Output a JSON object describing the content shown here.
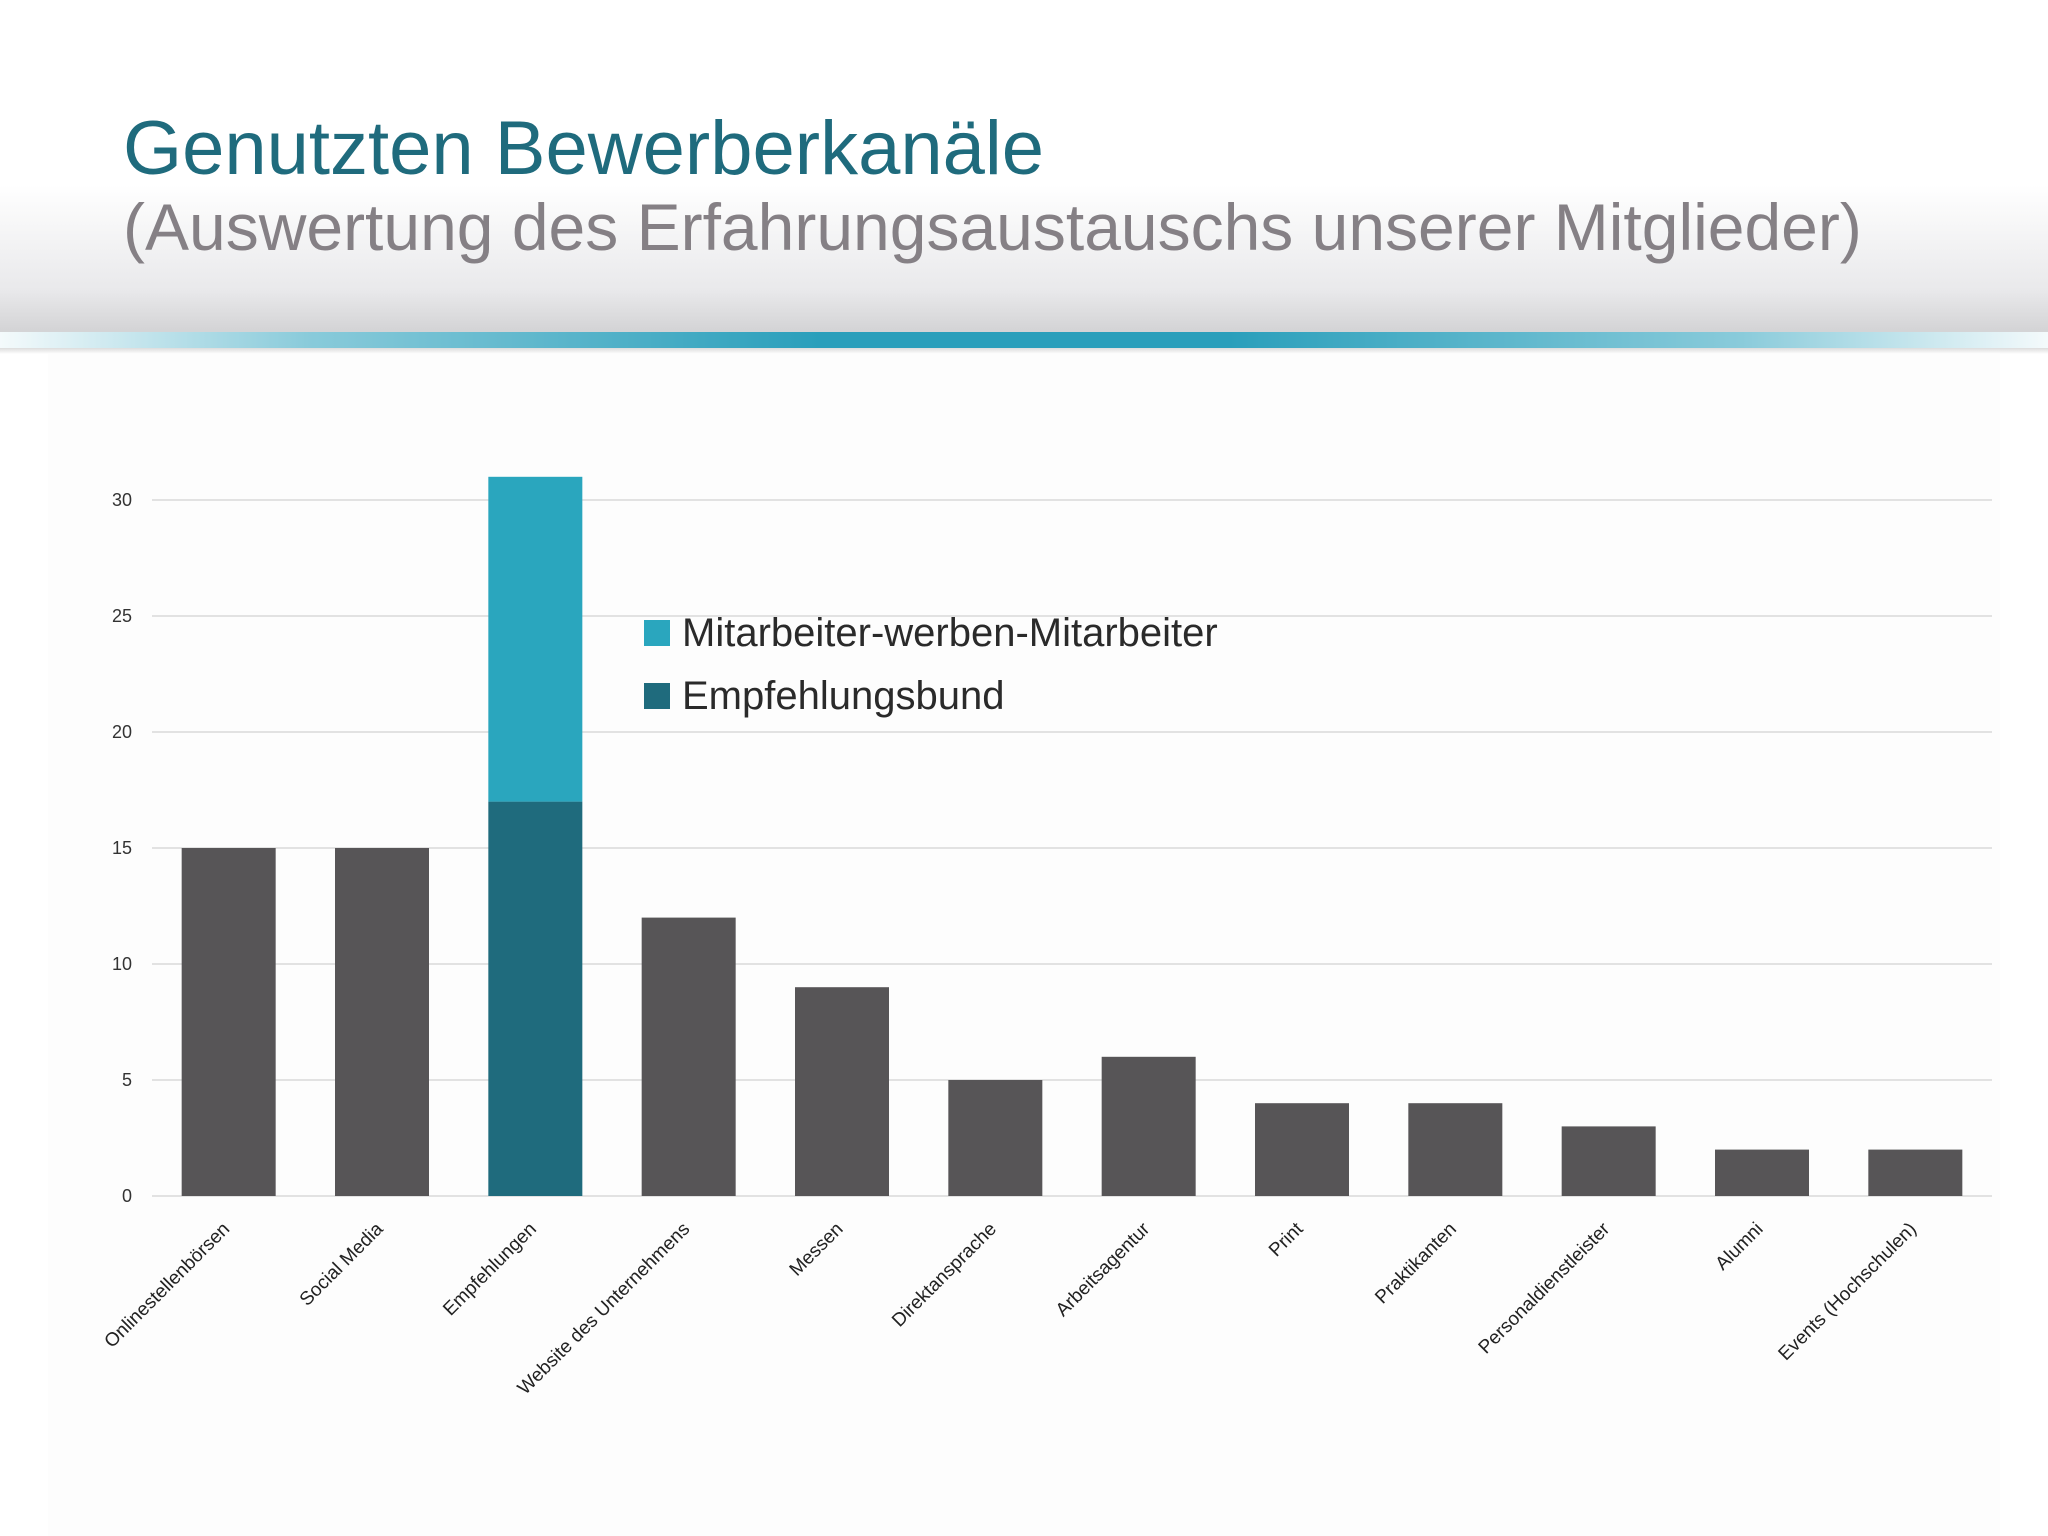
{
  "slide": {
    "title": "Genutzten Bewerberkanäle",
    "subtitle": "(Auswertung des Erfahrungsaustauschs unserer Mitglieder)"
  },
  "colors": {
    "title": "#1f6b7d",
    "subtitle": "#858085",
    "accent": "#2a9fbb",
    "bar_default": "#575557",
    "series_empfehlungsbund": "#1f6b7d",
    "series_mitarbeiter": "#2aa6be",
    "gridline": "#dadada"
  },
  "chart_data": {
    "type": "bar",
    "stacked": true,
    "title": "",
    "xlabel": "",
    "ylabel": "",
    "ylim": [
      0,
      31
    ],
    "yticks": [
      0,
      5,
      10,
      15,
      20,
      25,
      30
    ],
    "grid": true,
    "legend_position": "top-center",
    "categories": [
      "Onlinestellenbörsen",
      "Social Media",
      "Empfehlungen",
      "Website des Unternehmens",
      "Messen",
      "Direktansprache",
      "Arbeitsagentur",
      "Print",
      "Praktikanten",
      "Personaldienstleister",
      "Alumni",
      "Events (Hochschulen)"
    ],
    "values": [
      15,
      15,
      31,
      12,
      9,
      5,
      6,
      4,
      4,
      3,
      2,
      2
    ],
    "series": [
      {
        "name": "Empfehlungsbund",
        "category": "Empfehlungen",
        "value": 17
      },
      {
        "name": "Mitarbeiter-werben-Mitarbeiter",
        "category": "Empfehlungen",
        "value": 14
      }
    ],
    "legend": [
      "Mitarbeiter-werben-Mitarbeiter",
      "Empfehlungsbund"
    ]
  }
}
